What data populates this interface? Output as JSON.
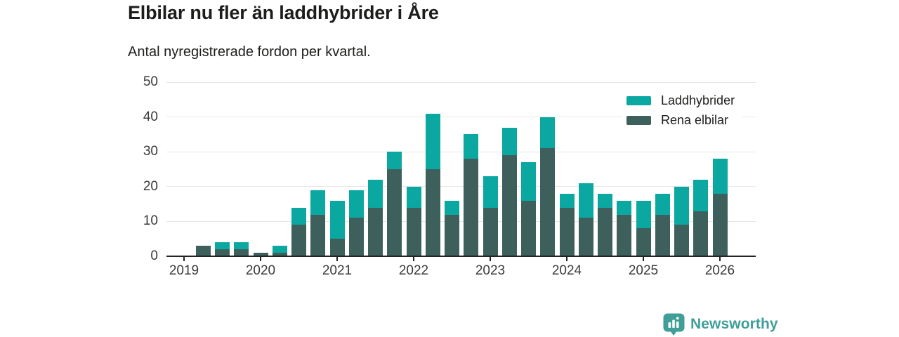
{
  "page": {
    "background": "#ffffff"
  },
  "header": {
    "title": "Elbilar nu fler än laddhybrider i Åre",
    "subtitle": "Antal nyregistrerade fordon per kvartal."
  },
  "legend": {
    "items": [
      {
        "label": "Laddhybrider",
        "color": "#0BA8A1"
      },
      {
        "label": "Rena elbilar",
        "color": "#3D605D"
      }
    ]
  },
  "footer": {
    "brand": "Newsworthy",
    "brand_color": "#3F9E98",
    "icon": "newsworthy-barchart-pin-icon"
  },
  "chart_data": {
    "type": "bar",
    "stacked": true,
    "title": "Elbilar nu fler än laddhybrider i Åre",
    "subtitle": "Antal nyregistrerade fordon per kvartal.",
    "xlabel": "",
    "ylabel": "",
    "ylim": [
      0,
      50
    ],
    "yticks": [
      0,
      10,
      20,
      30,
      40,
      50
    ],
    "grid": true,
    "legend_position": "top-right",
    "x_tick_labels": [
      "2019",
      "2020",
      "2021",
      "2022",
      "2023",
      "2024",
      "2025",
      "2026"
    ],
    "quarters": [
      "2019 Q1",
      "2019 Q2",
      "2019 Q3",
      "2019 Q4",
      "2020 Q1",
      "2020 Q2",
      "2020 Q3",
      "2020 Q4",
      "2021 Q1",
      "2021 Q2",
      "2021 Q3",
      "2021 Q4",
      "2022 Q1",
      "2022 Q2",
      "2022 Q3",
      "2022 Q4",
      "2023 Q1",
      "2023 Q2",
      "2023 Q3",
      "2023 Q4",
      "2024 Q1",
      "2024 Q2",
      "2024 Q3",
      "2024 Q4",
      "2025 Q1",
      "2025 Q2",
      "2025 Q3",
      "2025 Q4",
      "2026 Q1"
    ],
    "series": [
      {
        "name": "Laddhybrider",
        "color": "#0BA8A1",
        "stack": "top",
        "values": [
          0,
          0,
          2,
          2,
          0,
          2,
          5,
          7,
          11,
          8,
          8,
          5,
          6,
          16,
          4,
          7,
          9,
          8,
          11,
          9,
          4,
          10,
          4,
          4,
          8,
          6,
          11,
          9,
          10
        ]
      },
      {
        "name": "Rena elbilar",
        "color": "#3D605D",
        "stack": "bottom",
        "values": [
          0,
          3,
          2,
          2,
          1,
          1,
          9,
          12,
          5,
          11,
          14,
          25,
          14,
          25,
          12,
          28,
          14,
          29,
          16,
          31,
          14,
          11,
          14,
          12,
          8,
          12,
          9,
          13,
          18
        ]
      }
    ],
    "totals": [
      0,
      3,
      4,
      4,
      1,
      3,
      14,
      19,
      16,
      19,
      22,
      30,
      20,
      41,
      16,
      35,
      23,
      37,
      27,
      40,
      18,
      21,
      18,
      16,
      16,
      18,
      20,
      22,
      28
    ]
  }
}
